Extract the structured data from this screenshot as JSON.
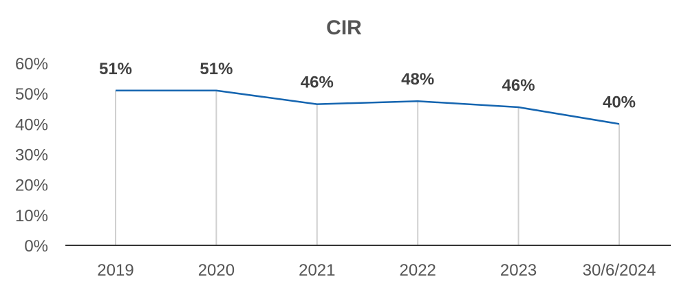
{
  "chart_data": {
    "type": "line",
    "title": "CIR",
    "categories": [
      "2019",
      "2020",
      "2021",
      "2022",
      "2023",
      "30/6/2024"
    ],
    "series": [
      {
        "values": [
          51,
          51,
          46.5,
          47.5,
          45.5,
          40
        ]
      }
    ],
    "data_labels": [
      "51%",
      "51%",
      "46%",
      "48%",
      "46%",
      "40%"
    ],
    "yticks": [
      "0%",
      "10%",
      "20%",
      "30%",
      "40%",
      "50%",
      "60%"
    ],
    "ylim": [
      0,
      60
    ],
    "grid": false,
    "drop_lines": true,
    "colors": {
      "line": "#1565b0",
      "drop_line": "#d0d0d0",
      "axis": "#333333",
      "text": "#555555",
      "label": "#404040"
    }
  }
}
